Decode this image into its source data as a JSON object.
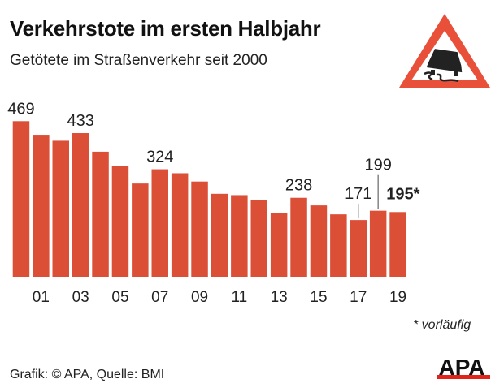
{
  "chart_data": {
    "type": "bar",
    "title": "Verkehrstote im ersten Halbjahr",
    "subtitle": "Getötete im Straßenverkehr seit 2000",
    "categories": [
      "2000",
      "2001",
      "2002",
      "2003",
      "2004",
      "2005",
      "2006",
      "2007",
      "2008",
      "2009",
      "2010",
      "2011",
      "2012",
      "2013",
      "2014",
      "2015",
      "2016",
      "2017",
      "2018",
      "2019"
    ],
    "values": [
      469,
      428,
      410,
      433,
      377,
      333,
      281,
      324,
      312,
      287,
      250,
      246,
      232,
      191,
      238,
      215,
      188,
      171,
      199,
      195
    ],
    "tick_labels": [
      "01",
      "03",
      "05",
      "07",
      "09",
      "11",
      "13",
      "15",
      "17",
      "19"
    ],
    "tick_years": [
      "2001",
      "2003",
      "2005",
      "2007",
      "2009",
      "2011",
      "2013",
      "2015",
      "2017",
      "2019"
    ],
    "data_labels": [
      {
        "year": "2000",
        "text": "469"
      },
      {
        "year": "2003",
        "text": "433"
      },
      {
        "year": "2007",
        "text": "324"
      },
      {
        "year": "2014",
        "text": "238"
      },
      {
        "year": "2017",
        "text": "171"
      },
      {
        "year": "2018",
        "text": "199"
      },
      {
        "year": "2019",
        "text": "195*",
        "bold": true
      }
    ],
    "ylim": [
      0,
      469
    ],
    "grid": false,
    "bar_color": "#dc4f37",
    "footnote": "* vorläufig"
  },
  "source": "Grafik: © APA, Quelle: BMI",
  "logo": {
    "text": "APA",
    "colors": [
      "#111111",
      "#e2231a"
    ]
  },
  "icon": "slippery-road-warning-sign-icon"
}
